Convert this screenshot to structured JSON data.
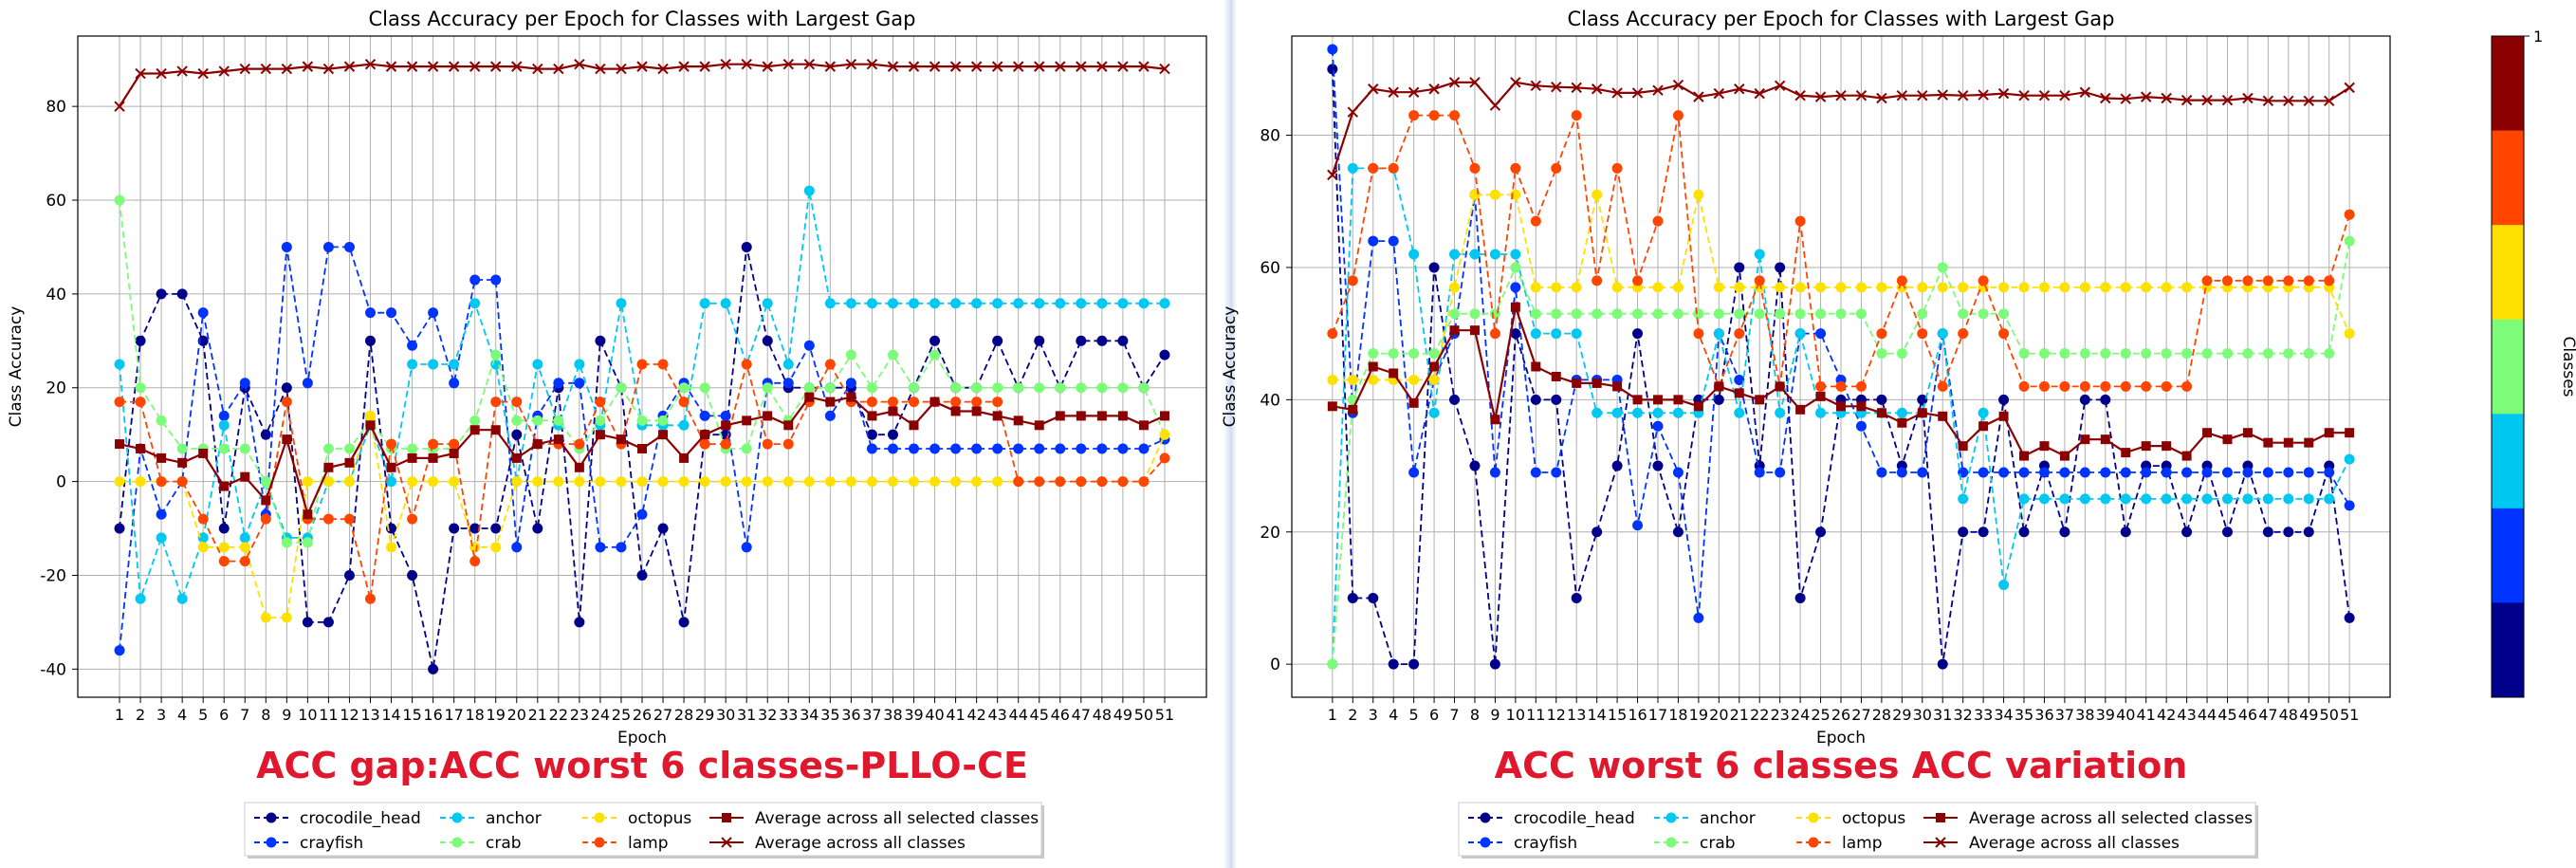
{
  "chart_data": [
    {
      "type": "line",
      "title": "Class Accuracy per Epoch for Classes with Largest Gap",
      "xlabel": "Epoch",
      "ylabel": "Class Accuracy",
      "caption": "ACC gap:ACC worst 6 classes-PLLO-CE",
      "ylim": [
        -46,
        95
      ],
      "yticks": [
        -40,
        -20,
        0,
        20,
        40,
        60,
        80
      ],
      "grid": true,
      "legend_position": "bottom-center",
      "x": [
        1,
        2,
        3,
        4,
        5,
        6,
        7,
        8,
        9,
        10,
        11,
        12,
        13,
        14,
        15,
        16,
        17,
        18,
        19,
        20,
        21,
        22,
        23,
        24,
        25,
        26,
        27,
        28,
        29,
        30,
        31,
        32,
        33,
        34,
        35,
        36,
        37,
        38,
        39,
        40,
        41,
        42,
        43,
        44,
        45,
        46,
        47,
        48,
        49,
        50,
        51
      ],
      "series": [
        {
          "name": "crocodile_head",
          "color": "#00008b",
          "style": "dashed",
          "marker": "circle",
          "values": [
            -10,
            30,
            40,
            40,
            30,
            -10,
            20,
            10,
            20,
            -30,
            -30,
            -20,
            30,
            -10,
            -20,
            -40,
            -10,
            -10,
            -10,
            10,
            -10,
            20,
            -30,
            30,
            20,
            -20,
            -10,
            -30,
            10,
            10,
            50,
            30,
            20,
            20,
            20,
            20,
            10,
            10,
            20,
            30,
            20,
            20,
            30,
            20,
            30,
            20,
            30,
            30,
            30,
            20,
            27
          ]
        },
        {
          "name": "crayfish",
          "color": "#0033ff",
          "style": "dashed",
          "marker": "circle",
          "values": [
            -36,
            7,
            -7,
            0,
            36,
            14,
            21,
            -7,
            50,
            21,
            50,
            50,
            36,
            36,
            29,
            36,
            21,
            43,
            43,
            -14,
            14,
            21,
            21,
            -14,
            -14,
            -7,
            14,
            21,
            14,
            14,
            -14,
            21,
            21,
            29,
            14,
            21,
            7,
            7,
            7,
            7,
            7,
            7,
            7,
            7,
            7,
            7,
            7,
            7,
            7,
            7,
            9
          ]
        },
        {
          "name": "anchor",
          "color": "#00c8f0",
          "style": "dashed",
          "marker": "circle",
          "values": [
            25,
            -25,
            -12,
            -25,
            -12,
            12,
            -12,
            0,
            -12,
            -12,
            0,
            0,
            12,
            0,
            25,
            25,
            25,
            38,
            25,
            0,
            25,
            12,
            25,
            12,
            38,
            12,
            12,
            12,
            38,
            38,
            25,
            38,
            25,
            62,
            38,
            38,
            38,
            38,
            38,
            38,
            38,
            38,
            38,
            38,
            38,
            38,
            38,
            38,
            38,
            38,
            38
          ]
        },
        {
          "name": "crab",
          "color": "#7cfc78",
          "style": "dashed",
          "marker": "circle",
          "values": [
            60,
            20,
            13,
            7,
            7,
            7,
            7,
            0,
            -13,
            -13,
            7,
            7,
            13,
            7,
            7,
            7,
            7,
            13,
            27,
            13,
            13,
            13,
            7,
            13,
            20,
            13,
            13,
            20,
            20,
            7,
            7,
            20,
            13,
            20,
            20,
            27,
            20,
            27,
            20,
            27,
            20,
            20,
            20,
            20,
            20,
            20,
            20,
            20,
            20,
            20,
            10
          ]
        },
        {
          "name": "octopus",
          "color": "#ffe100",
          "style": "dashed",
          "marker": "circle",
          "values": [
            0,
            0,
            0,
            0,
            -14,
            -14,
            -14,
            -29,
            -29,
            0,
            0,
            0,
            14,
            -14,
            0,
            0,
            0,
            -14,
            -14,
            0,
            0,
            0,
            0,
            0,
            0,
            0,
            0,
            0,
            0,
            0,
            0,
            0,
            0,
            0,
            0,
            0,
            0,
            0,
            0,
            0,
            0,
            0,
            0,
            0,
            0,
            0,
            0,
            0,
            0,
            0,
            10
          ]
        },
        {
          "name": "lamp",
          "color": "#ff4500",
          "style": "dashed",
          "marker": "circle",
          "values": [
            17,
            17,
            0,
            0,
            -8,
            -17,
            -17,
            -8,
            17,
            -8,
            -8,
            -8,
            -25,
            8,
            -8,
            8,
            8,
            -17,
            17,
            17,
            8,
            8,
            8,
            17,
            8,
            25,
            25,
            17,
            8,
            8,
            25,
            8,
            8,
            17,
            25,
            17,
            17,
            17,
            17,
            17,
            17,
            17,
            17,
            0,
            0,
            0,
            0,
            0,
            0,
            0,
            5
          ]
        },
        {
          "name": "Average across all selected classes",
          "color": "#8b0000",
          "style": "solid",
          "marker": "square",
          "values": [
            8,
            7,
            5,
            4,
            6,
            -1,
            1,
            -4,
            9,
            -7,
            3,
            4,
            12,
            3,
            5,
            5,
            6,
            11,
            11,
            5,
            8,
            9,
            3,
            10,
            9,
            7,
            10,
            5,
            10,
            12,
            13,
            14,
            12,
            18,
            17,
            18,
            14,
            15,
            12,
            17,
            15,
            15,
            14,
            13,
            12,
            14,
            14,
            14,
            14,
            12,
            14
          ]
        },
        {
          "name": "Average across all classes",
          "color": "#8b0000",
          "style": "solid",
          "marker": "x",
          "values": [
            80,
            87,
            87,
            87.5,
            87,
            87.5,
            88,
            88,
            88,
            88.5,
            88,
            88.5,
            89,
            88.5,
            88.5,
            88.5,
            88.5,
            88.5,
            88.5,
            88.5,
            88,
            88,
            89,
            88,
            88,
            88.5,
            88,
            88.5,
            88.5,
            89,
            89,
            88.5,
            89,
            89,
            88.5,
            89,
            89,
            88.5,
            88.5,
            88.5,
            88.5,
            88.5,
            88.5,
            88.5,
            88.5,
            88.5,
            88.5,
            88.5,
            88.5,
            88.5,
            88
          ]
        }
      ]
    },
    {
      "type": "line",
      "title": "Class Accuracy per Epoch for Classes with Largest Gap",
      "xlabel": "Epoch",
      "ylabel": "Class Accuracy",
      "caption": "ACC worst 6 classes ACC variation",
      "ylim": [
        -5,
        95
      ],
      "yticks": [
        0,
        20,
        40,
        60,
        80
      ],
      "grid": true,
      "legend_position": "bottom-center",
      "x": [
        1,
        2,
        3,
        4,
        5,
        6,
        7,
        8,
        9,
        10,
        11,
        12,
        13,
        14,
        15,
        16,
        17,
        18,
        19,
        20,
        21,
        22,
        23,
        24,
        25,
        26,
        27,
        28,
        29,
        30,
        31,
        32,
        33,
        34,
        35,
        36,
        37,
        38,
        39,
        40,
        41,
        42,
        43,
        44,
        45,
        46,
        47,
        48,
        49,
        50,
        51
      ],
      "series": [
        {
          "name": "crocodile_head",
          "color": "#00008b",
          "style": "dashed",
          "marker": "circle",
          "values": [
            90,
            10,
            10,
            0,
            0,
            60,
            40,
            30,
            0,
            50,
            40,
            40,
            10,
            20,
            30,
            50,
            30,
            20,
            40,
            40,
            60,
            30,
            60,
            10,
            20,
            40,
            40,
            40,
            30,
            40,
            0,
            20,
            20,
            40,
            20,
            30,
            20,
            40,
            40,
            20,
            30,
            30,
            20,
            30,
            20,
            30,
            20,
            20,
            20,
            30,
            7
          ]
        },
        {
          "name": "crayfish",
          "color": "#0033ff",
          "style": "dashed",
          "marker": "circle",
          "values": [
            93,
            38,
            64,
            64,
            29,
            43,
            50,
            71,
            29,
            57,
            29,
            29,
            43,
            43,
            43,
            21,
            36,
            29,
            7,
            50,
            43,
            29,
            29,
            50,
            50,
            43,
            36,
            29,
            29,
            29,
            50,
            29,
            29,
            29,
            29,
            29,
            29,
            29,
            29,
            29,
            29,
            29,
            29,
            29,
            29,
            29,
            29,
            29,
            29,
            29,
            24
          ]
        },
        {
          "name": "anchor",
          "color": "#00c8f0",
          "style": "dashed",
          "marker": "circle",
          "values": [
            0,
            75,
            75,
            75,
            62,
            38,
            62,
            62,
            62,
            62,
            50,
            50,
            50,
            38,
            38,
            38,
            38,
            38,
            38,
            50,
            38,
            62,
            38,
            50,
            38,
            38,
            38,
            38,
            38,
            38,
            50,
            25,
            38,
            12,
            25,
            25,
            25,
            25,
            25,
            25,
            25,
            25,
            25,
            25,
            25,
            25,
            25,
            25,
            25,
            25,
            31
          ]
        },
        {
          "name": "crab",
          "color": "#7cfc78",
          "style": "dashed",
          "marker": "circle",
          "values": [
            0,
            40,
            47,
            47,
            47,
            47,
            53,
            53,
            53,
            60,
            53,
            53,
            53,
            53,
            53,
            53,
            53,
            53,
            53,
            53,
            53,
            53,
            53,
            53,
            53,
            53,
            53,
            47,
            47,
            53,
            60,
            53,
            53,
            53,
            47,
            47,
            47,
            47,
            47,
            47,
            47,
            47,
            47,
            47,
            47,
            47,
            47,
            47,
            47,
            47,
            64
          ]
        },
        {
          "name": "octopus",
          "color": "#ffe100",
          "style": "dashed",
          "marker": "circle",
          "values": [
            43,
            43,
            43,
            43,
            43,
            43,
            57,
            71,
            71,
            71,
            57,
            57,
            57,
            71,
            57,
            57,
            57,
            57,
            71,
            57,
            57,
            57,
            57,
            57,
            57,
            57,
            57,
            57,
            57,
            57,
            57,
            57,
            57,
            57,
            57,
            57,
            57,
            57,
            57,
            57,
            57,
            57,
            57,
            57,
            57,
            57,
            57,
            57,
            57,
            57,
            50
          ]
        },
        {
          "name": "lamp",
          "color": "#ff4500",
          "style": "dashed",
          "marker": "circle",
          "values": [
            50,
            58,
            75,
            75,
            83,
            83,
            83,
            75,
            50,
            75,
            67,
            75,
            83,
            58,
            75,
            58,
            67,
            83,
            50,
            42,
            50,
            58,
            42,
            67,
            42,
            42,
            42,
            50,
            58,
            50,
            42,
            50,
            58,
            50,
            42,
            42,
            42,
            42,
            42,
            42,
            42,
            42,
            42,
            58,
            58,
            58,
            58,
            58,
            58,
            58,
            68
          ]
        },
        {
          "name": "Average across all selected classes",
          "color": "#8b0000",
          "style": "solid",
          "marker": "square",
          "values": [
            39,
            38.5,
            45,
            44,
            39.5,
            45,
            50.5,
            50.5,
            37,
            54,
            45,
            43.5,
            42.5,
            42.5,
            42,
            40,
            40,
            40,
            39,
            42,
            41,
            40,
            42,
            38.5,
            40.5,
            39,
            39,
            38,
            36.5,
            38,
            37.5,
            33,
            36,
            37.5,
            31.5,
            33,
            31.5,
            34,
            34,
            32,
            33,
            33,
            31.5,
            35,
            34,
            35,
            33.5,
            33.5,
            33.5,
            35,
            35
          ]
        },
        {
          "name": "Average across all classes",
          "color": "#8b0000",
          "style": "solid",
          "marker": "x",
          "values": [
            74,
            83.5,
            87,
            86.5,
            86.5,
            87,
            88,
            88,
            84.5,
            88,
            87.5,
            87.3,
            87.2,
            87,
            86.4,
            86.4,
            86.8,
            87.6,
            85.8,
            86.3,
            87,
            86.3,
            87.5,
            86,
            85.8,
            86,
            86,
            85.6,
            86,
            86,
            86.1,
            86,
            86.1,
            86.3,
            86,
            86,
            86,
            86.5,
            85.6,
            85.5,
            85.8,
            85.6,
            85.3,
            85.3,
            85.3,
            85.6,
            85.2,
            85.2,
            85.2,
            85.2,
            87.2
          ]
        }
      ]
    }
  ],
  "colorbar": {
    "label": "Classes",
    "tick": "1",
    "colors": [
      "#8b0000",
      "#ff4500",
      "#ffe100",
      "#7cfc78",
      "#00c8f0",
      "#0033ff",
      "#00008b"
    ]
  }
}
